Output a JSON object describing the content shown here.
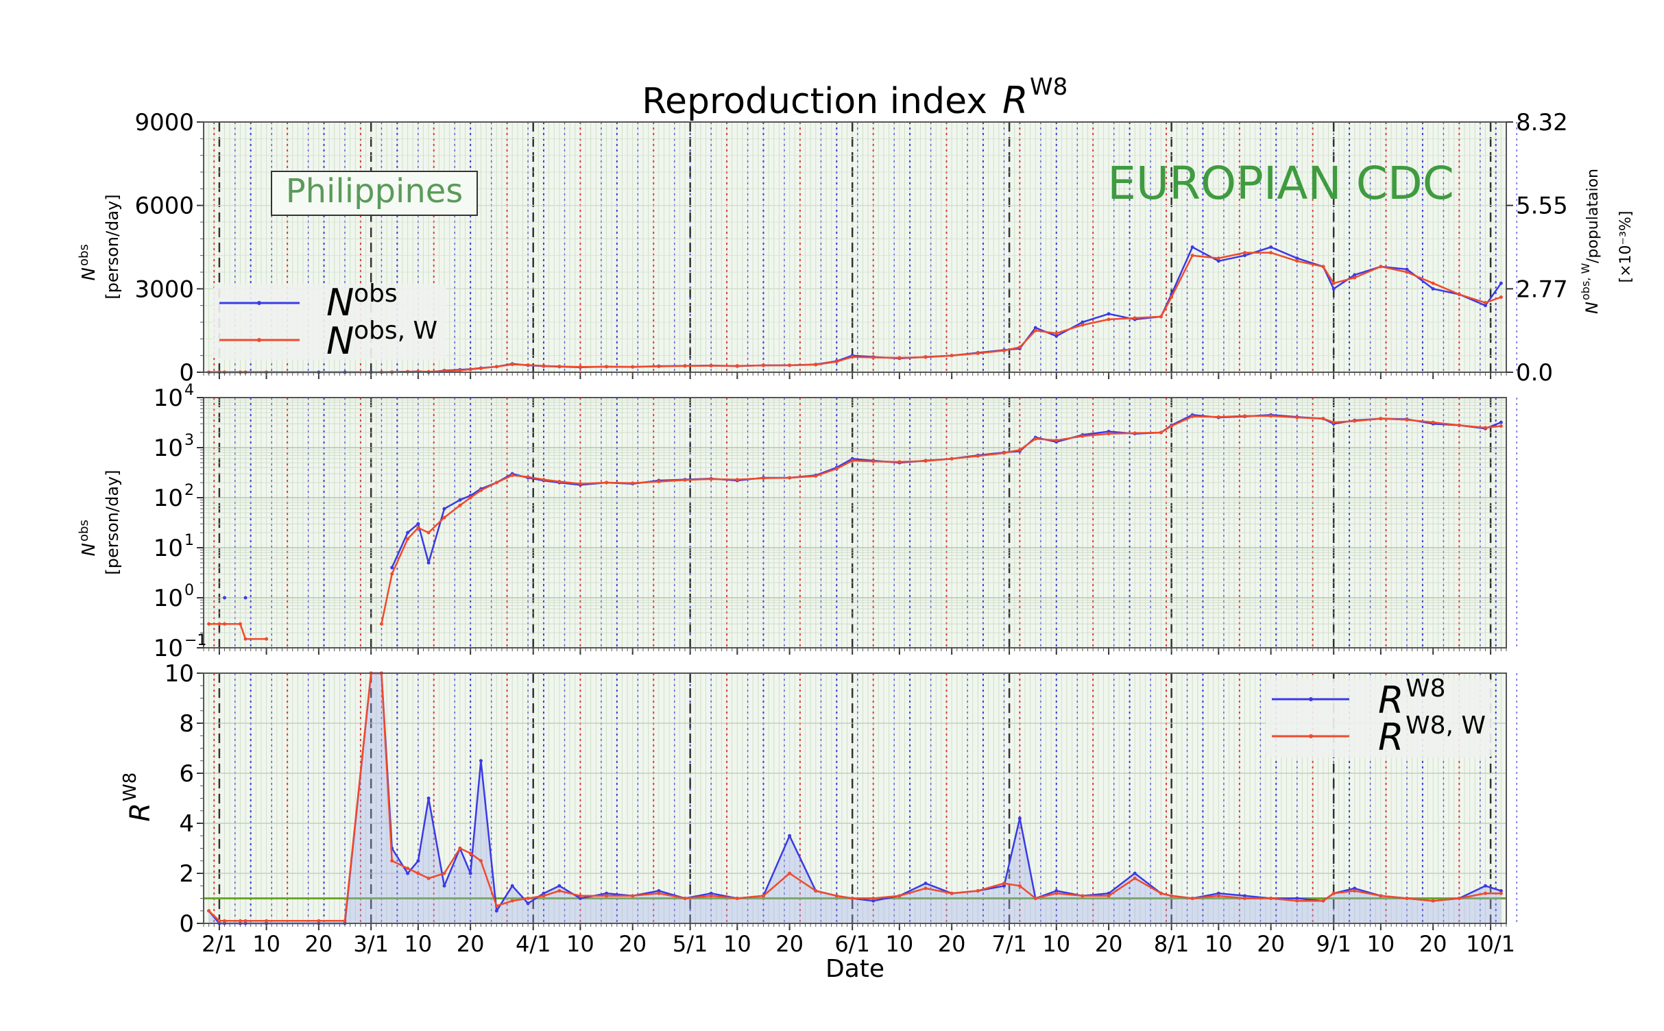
{
  "figure": {
    "title": "Reproduction index",
    "title_symbol": "R",
    "title_superscript": "W8",
    "country": "Philippines",
    "source": "EUROPIAN CDC",
    "xlabel": "Date",
    "x_ticks": [
      "2/1",
      "10",
      "20",
      "3/1",
      "10",
      "20",
      "4/1",
      "10",
      "20",
      "5/1",
      "10",
      "20",
      "6/1",
      "10",
      "20",
      "7/1",
      "10",
      "20",
      "8/1",
      "10",
      "20",
      "9/1",
      "10",
      "20",
      "10/1"
    ]
  },
  "panel1": {
    "ylabel_symbol": "N",
    "ylabel_sup": "obs",
    "ylabel_unit": "[person/day]",
    "right_ylabel_symbol": "N",
    "right_ylabel_sup": "obs, W",
    "right_ylabel_rest": "/populataion",
    "right_ylabel_unit": "[×10⁻³%]",
    "y_ticks": [
      "0",
      "3000",
      "6000",
      "9000"
    ],
    "right_ticks": [
      "0.0",
      "2.77",
      "5.55",
      "8.32"
    ],
    "legend": [
      {
        "symbol": "N",
        "sup": "obs",
        "color": "#3a3ae6"
      },
      {
        "symbol": "N",
        "sup": "obs, W",
        "color": "#f04a2c"
      }
    ]
  },
  "panel2": {
    "ylabel_symbol": "N",
    "ylabel_sup": "obs",
    "ylabel_unit": "[person/day]",
    "y_ticks": [
      {
        "base": "10",
        "exp": "−1"
      },
      {
        "base": "10",
        "exp": "0"
      },
      {
        "base": "10",
        "exp": "1"
      },
      {
        "base": "10",
        "exp": "2"
      },
      {
        "base": "10",
        "exp": "3"
      },
      {
        "base": "10",
        "exp": "4"
      }
    ]
  },
  "panel3": {
    "ylabel_symbol": "R",
    "ylabel_sup": "W8",
    "y_ticks": [
      "0",
      "2",
      "4",
      "6",
      "8",
      "10"
    ],
    "legend": [
      {
        "symbol": "R",
        "sup": "W8",
        "color": "#3a3ae6"
      },
      {
        "symbol": "R",
        "sup": "W8, W",
        "color": "#f04a2c"
      }
    ]
  },
  "chart_data": {
    "type": "line",
    "x": [
      "2020-01-30",
      "2020-02-01",
      "2020-02-02",
      "2020-02-05",
      "2020-02-06",
      "2020-02-10",
      "2020-02-20",
      "2020-02-25",
      "2020-03-01",
      "2020-03-03",
      "2020-03-05",
      "2020-03-08",
      "2020-03-10",
      "2020-03-12",
      "2020-03-15",
      "2020-03-18",
      "2020-03-20",
      "2020-03-22",
      "2020-03-25",
      "2020-03-28",
      "2020-03-31",
      "2020-04-03",
      "2020-04-06",
      "2020-04-10",
      "2020-04-15",
      "2020-04-20",
      "2020-04-25",
      "2020-04-30",
      "2020-05-05",
      "2020-05-10",
      "2020-05-15",
      "2020-05-20",
      "2020-05-25",
      "2020-05-29",
      "2020-06-01",
      "2020-06-05",
      "2020-06-10",
      "2020-06-15",
      "2020-06-20",
      "2020-06-25",
      "2020-06-30",
      "2020-07-03",
      "2020-07-06",
      "2020-07-10",
      "2020-07-15",
      "2020-07-20",
      "2020-07-25",
      "2020-07-30",
      "2020-08-01",
      "2020-08-05",
      "2020-08-10",
      "2020-08-15",
      "2020-08-20",
      "2020-08-25",
      "2020-08-30",
      "2020-09-01",
      "2020-09-05",
      "2020-09-10",
      "2020-09-15",
      "2020-09-20",
      "2020-09-25",
      "2020-09-30",
      "2020-10-03"
    ],
    "ylim_panel1": [
      0,
      9000
    ],
    "ylim_panel2": [
      0.1,
      10000
    ],
    "ylim_panel3": [
      0,
      10
    ],
    "y_scale_panel2": "log",
    "reference_line_R": 1.0,
    "grid": true,
    "series": [
      {
        "name": "N^obs",
        "values": [
          0,
          0,
          1,
          0,
          1,
          0,
          0,
          0,
          0,
          0,
          4,
          20,
          30,
          5,
          60,
          90,
          110,
          150,
          200,
          300,
          250,
          220,
          200,
          180,
          200,
          190,
          220,
          230,
          240,
          220,
          250,
          250,
          280,
          400,
          600,
          550,
          500,
          550,
          600,
          700,
          800,
          850,
          1600,
          1300,
          1800,
          2100,
          1900,
          2000,
          2800,
          4500,
          4000,
          4200,
          4500,
          4100,
          3800,
          3000,
          3500,
          3800,
          3700,
          3000,
          2800,
          2400,
          3200
        ]
      },
      {
        "name": "N^obs,W",
        "values": [
          0.3,
          0.3,
          0.3,
          0.3,
          0.15,
          0.15,
          null,
          null,
          null,
          0.3,
          3,
          15,
          25,
          20,
          40,
          70,
          100,
          140,
          200,
          280,
          260,
          230,
          210,
          190,
          200,
          195,
          210,
          225,
          235,
          230,
          245,
          250,
          270,
          380,
          550,
          530,
          520,
          540,
          600,
          680,
          780,
          900,
          1500,
          1400,
          1700,
          1900,
          1950,
          2000,
          2700,
          4200,
          4100,
          4300,
          4300,
          4000,
          3800,
          3200,
          3400,
          3800,
          3600,
          3200,
          2800,
          2500,
          2700
        ]
      },
      {
        "name": "R^W8",
        "values": [
          0.5,
          0,
          0,
          0,
          0,
          0,
          0,
          0,
          10,
          10,
          3,
          2,
          2.5,
          5,
          1.5,
          3,
          2,
          6.5,
          0.5,
          1.5,
          0.8,
          1.2,
          1.5,
          1,
          1.2,
          1.1,
          1.3,
          1,
          1.2,
          1,
          1.1,
          3.5,
          1.3,
          1.1,
          1,
          0.9,
          1.1,
          1.6,
          1.2,
          1.3,
          1.5,
          4.2,
          1,
          1.3,
          1.1,
          1.2,
          2,
          1.2,
          1.1,
          1,
          1.2,
          1.1,
          1,
          1,
          0.9,
          1.2,
          1.4,
          1.1,
          1,
          0.9,
          1,
          1.5,
          1.3
        ]
      },
      {
        "name": "R^W8,W",
        "values": [
          0.5,
          0.1,
          0.1,
          0.1,
          0.1,
          0.1,
          0.1,
          0.1,
          10,
          10,
          2.5,
          2.2,
          2,
          1.8,
          2,
          3,
          2.8,
          2.5,
          0.7,
          0.9,
          1,
          1.1,
          1.3,
          1.1,
          1.1,
          1.1,
          1.2,
          1,
          1.1,
          1,
          1.1,
          2,
          1.3,
          1.1,
          1,
          1,
          1.1,
          1.4,
          1.2,
          1.3,
          1.6,
          1.5,
          1,
          1.2,
          1.1,
          1.1,
          1.8,
          1.2,
          1.1,
          1,
          1.1,
          1,
          1,
          0.9,
          0.9,
          1.2,
          1.3,
          1.1,
          1,
          0.9,
          1,
          1.2,
          1.2
        ]
      }
    ]
  }
}
